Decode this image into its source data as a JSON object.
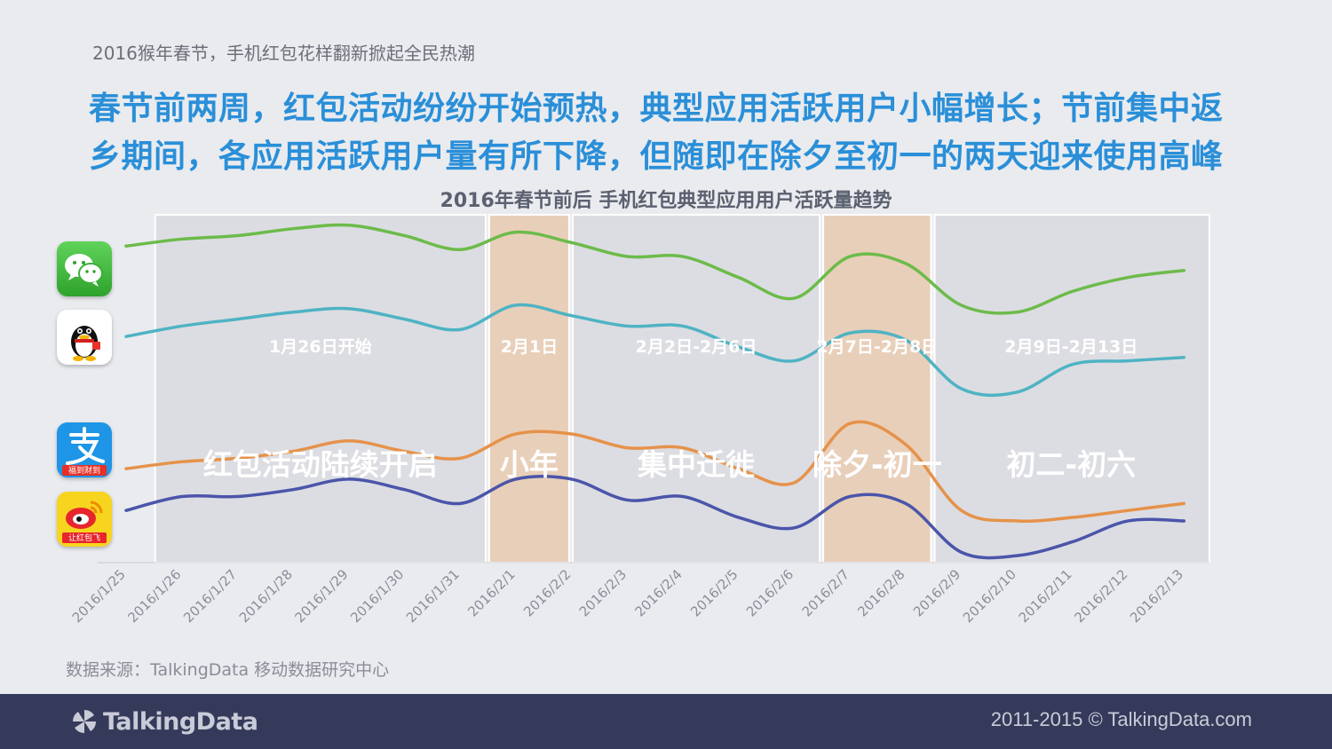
{
  "header": {
    "subtitle": "2016猴年春节，手机红包花样翻新掀起全民热潮",
    "headline_line1": "春节前两周，红包活动纷纷开始预热，典型应用活跃用户小幅增长；节前集中返",
    "headline_line2": "乡期间，各应用活跃用户量有所下降，但随即在除夕至初一的两天迎来使用高峰"
  },
  "app_icons": {
    "wechat": "wechat-icon",
    "qq": "qq-icon",
    "alipay": "alipay-icon",
    "weibo": "weibo-icon",
    "alipay_caption": "福到财到",
    "weibo_caption": "让红包飞"
  },
  "chart_data": {
    "type": "line",
    "title": "2016年春节前后 手机红包典型应用用户活跃量趋势",
    "categories": [
      "2016/1/25",
      "2016/1/26",
      "2016/1/27",
      "2016/1/28",
      "2016/1/29",
      "2016/1/30",
      "2016/1/31",
      "2016/2/1",
      "2016/2/2",
      "2016/2/3",
      "2016/2/4",
      "2016/2/5",
      "2016/2/6",
      "2016/2/7",
      "2016/2/8",
      "2016/2/9",
      "2016/2/10",
      "2016/2/11",
      "2016/2/12",
      "2016/2/13"
    ],
    "ylim": [
      0,
      100
    ],
    "series": [
      {
        "name": "微信",
        "color": "#6cbb4a",
        "values": [
          91,
          93,
          94,
          96,
          97,
          94,
          90,
          95,
          92,
          88,
          88,
          82,
          76,
          88,
          86,
          74,
          72,
          78,
          82,
          84
        ]
      },
      {
        "name": "QQ",
        "color": "#4fb3c4",
        "values": [
          65,
          68,
          70,
          72,
          73,
          70,
          67,
          74,
          71,
          68,
          68,
          62,
          58,
          66,
          64,
          50,
          49,
          57,
          58,
          59
        ]
      },
      {
        "name": "支付宝",
        "color": "#e6924a",
        "values": [
          27,
          29,
          30,
          32,
          35,
          32,
          30,
          37,
          37,
          33,
          33,
          27,
          23,
          40,
          34,
          15,
          12,
          13,
          15,
          17
        ]
      },
      {
        "name": "新浪微博",
        "color": "#4a55aa",
        "values": [
          15,
          19,
          19,
          21,
          24,
          21,
          17,
          24,
          24,
          18,
          19,
          13,
          10,
          19,
          17,
          3,
          2,
          6,
          12,
          12
        ]
      }
    ],
    "periods": [
      {
        "date_label": "1月26日开始",
        "name": "红包活动陆续开启",
        "start_index": 1,
        "end_index": 7,
        "style": "gray"
      },
      {
        "date_label": "2月1日",
        "name": "小年",
        "start_index": 7,
        "end_index": 8.5,
        "style": "orange"
      },
      {
        "date_label": "2月2日-2月6日",
        "name": "集中迁徙",
        "start_index": 8.5,
        "end_index": 13,
        "style": "gray"
      },
      {
        "date_label": "2月7日-2月8日",
        "name": "除夕-初一",
        "start_index": 13,
        "end_index": 15,
        "style": "orange"
      },
      {
        "date_label": "2月9日-2月13日",
        "name": "初二-初六",
        "start_index": 15,
        "end_index": 20,
        "style": "gray"
      }
    ]
  },
  "source": "数据来源：TalkingData 移动数据研究中心",
  "footer": {
    "logo_text": "TalkingData",
    "copyright": "2011-2015 © TalkingData.com"
  }
}
